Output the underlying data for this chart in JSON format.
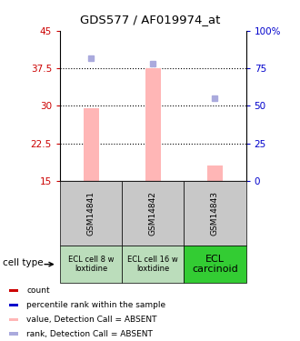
{
  "title": "GDS577 / AF019974_at",
  "samples": [
    "GSM14841",
    "GSM14842",
    "GSM14843"
  ],
  "bar_values": [
    29.5,
    37.5,
    18.0
  ],
  "bar_color": "#FFB6B6",
  "dot_values": [
    39.5,
    38.5,
    31.5
  ],
  "dot_color": "#AAAADD",
  "ylim_left": [
    15,
    45
  ],
  "ylim_right": [
    0,
    100
  ],
  "yticks_left": [
    15,
    22.5,
    30,
    37.5,
    45
  ],
  "ytick_labels_left": [
    "15",
    "22.5",
    "30",
    "37.5",
    "45"
  ],
  "yticks_right": [
    0,
    25,
    50,
    75,
    100
  ],
  "ytick_labels_right": [
    "0",
    "25",
    "50",
    "75",
    "100%"
  ],
  "dotted_lines": [
    22.5,
    30,
    37.5
  ],
  "cell_type_labels": [
    "ECL cell 8 w\nloxtidine",
    "ECL cell 16 w\nloxtidine",
    "ECL\ncarcinoid"
  ],
  "cell_bg_colors": [
    "#BBDDBB",
    "#BBDDBB",
    "#33CC33"
  ],
  "sample_bg_color": "#C8C8C8",
  "left_axis_color": "#CC0000",
  "right_axis_color": "#0000CC",
  "bar_width": 0.25,
  "bar_base": 15,
  "legend_items": [
    {
      "color": "#CC0000",
      "label": "count",
      "shape": "s"
    },
    {
      "color": "#0000CC",
      "label": "percentile rank within the sample",
      "shape": "s"
    },
    {
      "color": "#FFB6B6",
      "label": "value, Detection Call = ABSENT",
      "shape": "s"
    },
    {
      "color": "#AAAADD",
      "label": "rank, Detection Call = ABSENT",
      "shape": "s"
    }
  ]
}
